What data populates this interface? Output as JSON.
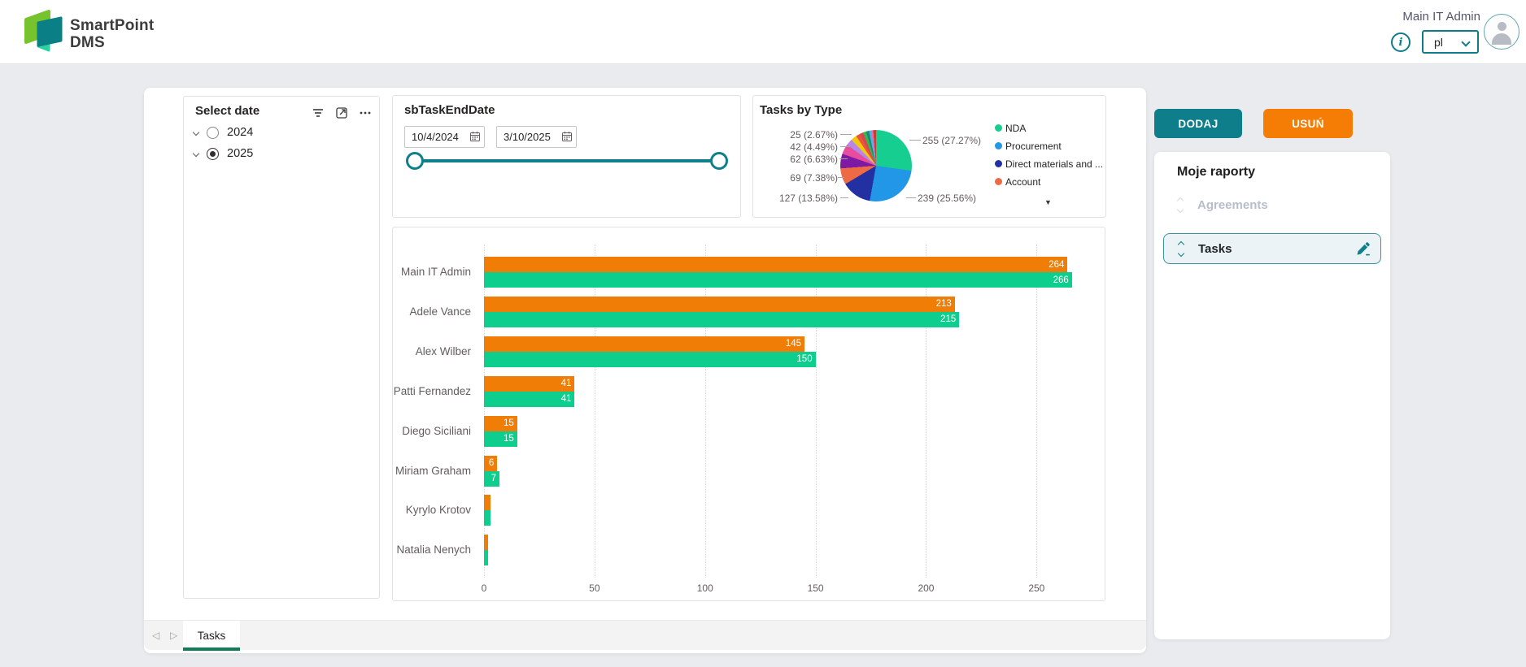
{
  "header": {
    "logo_line1": "SmartPoint",
    "logo_line2": "DMS",
    "user_name": "Main IT Admin",
    "language": "pl"
  },
  "icons": {
    "info": "i",
    "prev_page": "◁",
    "next_page": "▷",
    "legend_overflow": "▼"
  },
  "toolbar": {
    "add_label": "DODAJ",
    "remove_label": "USUŃ"
  },
  "reports_panel": {
    "title": "Moje raporty",
    "items": [
      {
        "label": "Agreements",
        "state": "disabled"
      },
      {
        "label": "Tasks",
        "state": "selected"
      }
    ]
  },
  "select_date": {
    "title": "Select date",
    "options": [
      {
        "label": "2024",
        "selected": false
      },
      {
        "label": "2025",
        "selected": true
      }
    ]
  },
  "date_slicer": {
    "title": "sbTaskEndDate",
    "start_date": "10/4/2024",
    "end_date": "3/10/2025"
  },
  "bottom_bar": {
    "active_tab": "Tasks"
  },
  "chart_data": [
    {
      "type": "pie",
      "title": "Tasks by Type",
      "legend_position": "right",
      "slices": [
        {
          "label": "NDA",
          "value": 255,
          "callout": "255 (27.27%)",
          "color": "#15CE8F"
        },
        {
          "label": "Procurement",
          "value": 239,
          "callout": "239 (25.56%)",
          "color": "#2297E8"
        },
        {
          "label": "Direct materials and ...",
          "value": 127,
          "callout": "127 (13.58%)",
          "color": "#2330A2"
        },
        {
          "label": "Account",
          "value": 69,
          "callout": "69 (7.38%)",
          "color": "#EE6A45"
        },
        {
          "label": "",
          "value": 62,
          "callout": "62 (6.63%)",
          "color": "#7E19A4"
        },
        {
          "label": "",
          "value": 42,
          "callout": "42 (4.49%)",
          "color": "#E84C9D"
        },
        {
          "label": "",
          "value": 28,
          "callout": "",
          "color": "#B687E8"
        },
        {
          "label": "",
          "value": 25,
          "callout": "25 (2.67%)",
          "color": "#F2C80F"
        },
        {
          "label": "",
          "value": 18,
          "callout": "",
          "color": "#E8543D"
        },
        {
          "label": "",
          "value": 14,
          "callout": "",
          "color": "#D64550"
        },
        {
          "label": "",
          "value": 14,
          "callout": "",
          "color": "#3BB44A"
        },
        {
          "label": "",
          "value": 12,
          "callout": "",
          "color": "#168980"
        },
        {
          "label": "",
          "value": 10,
          "callout": "",
          "color": "#53B3E0"
        },
        {
          "label": "",
          "value": 8,
          "callout": "",
          "color": "#F06AAE"
        },
        {
          "label": "",
          "value": 12,
          "callout": "",
          "color": "#C43E36"
        }
      ]
    },
    {
      "type": "bar",
      "orientation": "horizontal",
      "categories": [
        "Main IT Admin",
        "Adele Vance",
        "Alex Wilber",
        "Patti Fernandez",
        "Diego Siciliani",
        "Miriam Graham",
        "Kyrylo Krotov",
        "Natalia Nenych"
      ],
      "series": [
        {
          "name": "",
          "color": "#F07D05",
          "values": [
            264,
            213,
            145,
            41,
            15,
            6,
            3,
            2
          ],
          "data_labels": [
            "264",
            "213",
            "145",
            "41",
            "15",
            "6",
            "",
            ""
          ]
        },
        {
          "name": "",
          "color": "#0DCE8C",
          "values": [
            266,
            215,
            150,
            41,
            15,
            7,
            3,
            2
          ],
          "data_labels": [
            "266",
            "215",
            "150",
            "41",
            "15",
            "7",
            "",
            ""
          ]
        }
      ],
      "xlim": [
        0,
        276
      ],
      "xticks": [
        0,
        50,
        100,
        150,
        200,
        250
      ],
      "grid": "vertical-dotted"
    }
  ]
}
